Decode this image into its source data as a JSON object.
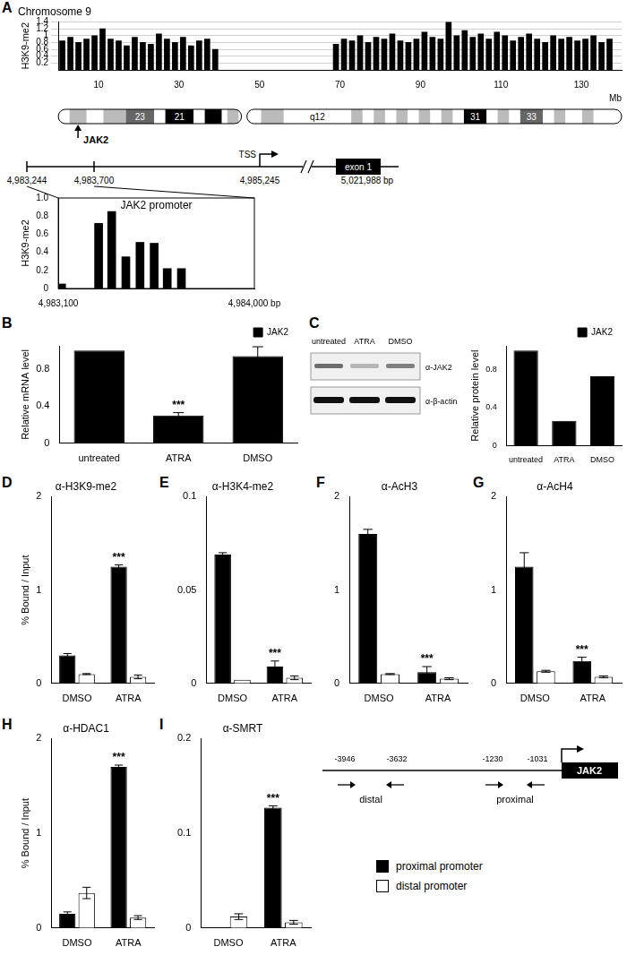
{
  "chart_data": [
    {
      "panel": "A",
      "type": "bar",
      "title": "Chromosome 9",
      "ylabel": "H3K9-me2",
      "xlabel": "Mb",
      "x": [
        1,
        3,
        5,
        7,
        9,
        11,
        13,
        15,
        17,
        19,
        21,
        23,
        25,
        27,
        29,
        31,
        33,
        35,
        37,
        39,
        69,
        71,
        73,
        75,
        77,
        79,
        81,
        83,
        85,
        87,
        89,
        91,
        93,
        95,
        97,
        99,
        101,
        103,
        105,
        107,
        109,
        111,
        113,
        115,
        117,
        119,
        121,
        123,
        125,
        127,
        129,
        131,
        133,
        135,
        137
      ],
      "values": [
        0.85,
        0.95,
        0.8,
        0.9,
        1.0,
        1.2,
        0.9,
        0.85,
        0.7,
        0.95,
        0.8,
        0.75,
        1.05,
        0.9,
        0.8,
        0.95,
        0.7,
        0.85,
        0.9,
        0.6,
        0.75,
        0.9,
        0.85,
        1.0,
        0.8,
        0.95,
        0.9,
        1.05,
        0.85,
        0.8,
        0.9,
        1.1,
        0.95,
        0.9,
        1.4,
        1.0,
        1.15,
        0.95,
        1.05,
        0.9,
        1.1,
        1.0,
        0.85,
        0.95,
        1.05,
        0.9,
        0.8,
        1.0,
        0.9,
        0.95,
        0.85,
        0.9,
        1.0,
        0.8,
        0.9
      ],
      "color": "#000000",
      "xlim": [
        0,
        140
      ],
      "xticks": [
        10,
        30,
        50,
        70,
        90,
        110,
        130
      ],
      "ylim": [
        0,
        1.4
      ],
      "yticks": [
        0.2,
        0.4,
        0.6,
        0.8,
        1,
        1.2,
        1.4
      ],
      "grid": true
    },
    {
      "type": "bar",
      "title": "JAK2 promoter",
      "ylabel": "H3K9-me2",
      "x": [
        4983115,
        4983285,
        4983345,
        4983410,
        4983475,
        4983540,
        4983600,
        4983665
      ],
      "values": [
        0.05,
        0.72,
        0.85,
        0.35,
        0.51,
        0.5,
        0.22,
        0.22
      ],
      "color": "#000000",
      "xlim": [
        4983100,
        4984000
      ],
      "xticks": [
        {
          "value": 4983100,
          "label": "4,983,100"
        },
        {
          "value": 4984000,
          "label": "4,984,000 bp"
        }
      ],
      "ylim": [
        0,
        1
      ],
      "yticks": [
        0,
        0.2,
        0.4,
        0.6,
        0.8,
        {
          "value": 1,
          "label": "1.0"
        }
      ]
    },
    {
      "panel": "B",
      "type": "bar",
      "ylabel": "Relative mRNA level",
      "categories": [
        "untreated",
        "ATRA",
        "DMSO"
      ],
      "series": [
        {
          "name": "JAK2",
          "color": "#000000",
          "values": [
            1,
            0.3,
            0.94
          ],
          "errors": [
            0,
            0.03,
            0.1
          ]
        }
      ],
      "ylim": [
        0,
        1.05
      ],
      "yticks": [
        0,
        0.4,
        0.8
      ],
      "legend": "upper right",
      "annotations": [
        {
          "text": "***",
          "category": "ATRA"
        }
      ]
    },
    {
      "panel": "C",
      "type": "bar",
      "ylabel": "Relative protein level",
      "categories": [
        "untreated",
        "ATRA",
        "DMSO"
      ],
      "series": [
        {
          "name": "JAK2",
          "color": "#000000",
          "values": [
            1,
            0.26,
            0.73
          ]
        }
      ],
      "ylim": [
        0,
        1.05
      ],
      "yticks": [
        0,
        0.4,
        0.8
      ],
      "legend": "upper right"
    },
    {
      "panel": "D",
      "type": "bar",
      "title": "α-H3K9-me2",
      "ylabel": "% Bound / Input",
      "categories": [
        "DMSO",
        "ATRA"
      ],
      "series": [
        {
          "color": "#000000",
          "values": [
            0.3,
            1.25
          ],
          "errors": [
            0.02,
            0.02
          ]
        },
        {
          "color": "#ffffff",
          "values": [
            0.1,
            0.07
          ],
          "errors": [
            0.005,
            0.02
          ]
        }
      ],
      "ylim": [
        0,
        2
      ],
      "yticks": [
        0,
        1,
        2
      ],
      "annotations": [
        {
          "text": "***",
          "category": "ATRA"
        }
      ]
    },
    {
      "panel": "E",
      "type": "bar",
      "title": "α-H3K4-me2",
      "categories": [
        "DMSO",
        "ATRA"
      ],
      "series": [
        {
          "color": "#000000",
          "values": [
            0.069,
            0.009
          ],
          "errors": [
            0.001,
            0.003
          ]
        },
        {
          "color": "#ffffff",
          "values": [
            0.002,
            0.003
          ],
          "errors": [
            0,
            0.001
          ]
        }
      ],
      "ylim": [
        0,
        0.1
      ],
      "yticks": [
        0,
        0.05,
        0.1
      ],
      "annotations": [
        {
          "text": "***",
          "category": "ATRA"
        }
      ]
    },
    {
      "panel": "F",
      "type": "bar",
      "title": "α-AcH3",
      "categories": [
        "DMSO",
        "ATRA"
      ],
      "series": [
        {
          "color": "#000000",
          "values": [
            1.6,
            0.12
          ],
          "errors": [
            0.05,
            0.06
          ]
        },
        {
          "color": "#ffffff",
          "values": [
            0.1,
            0.05
          ],
          "errors": [
            0.005,
            0.01
          ]
        }
      ],
      "ylim": [
        0,
        2
      ],
      "yticks": [
        0,
        1,
        2
      ],
      "annotations": [
        {
          "text": "***",
          "category": "ATRA"
        }
      ]
    },
    {
      "panel": "G",
      "type": "bar",
      "title": "α-AcH4",
      "categories": [
        "DMSO",
        "ATRA"
      ],
      "series": [
        {
          "color": "#000000",
          "values": [
            1.25,
            0.24
          ],
          "errors": [
            0.15,
            0.04
          ]
        },
        {
          "color": "#ffffff",
          "values": [
            0.13,
            0.07
          ],
          "errors": [
            0.01,
            0.01
          ]
        }
      ],
      "ylim": [
        0,
        2
      ],
      "yticks": [
        0,
        1,
        2
      ],
      "annotations": [
        {
          "text": "***",
          "category": "ATRA"
        }
      ]
    },
    {
      "panel": "H",
      "type": "bar",
      "title": "α-HDAC1",
      "ylabel": "% Bound / Input",
      "categories": [
        "DMSO",
        "ATRA"
      ],
      "series": [
        {
          "color": "#000000",
          "values": [
            0.15,
            1.7
          ],
          "errors": [
            0.02,
            0.02
          ]
        },
        {
          "color": "#ffffff",
          "values": [
            0.37,
            0.11
          ],
          "errors": [
            0.06,
            0.02
          ]
        }
      ],
      "ylim": [
        0,
        2
      ],
      "yticks": [
        0,
        1,
        2
      ],
      "annotations": [
        {
          "text": "***",
          "category": "ATRA"
        }
      ]
    },
    {
      "panel": "I",
      "type": "bar",
      "title": "α-SMRT",
      "categories": [
        "DMSO",
        "ATRA"
      ],
      "series": [
        {
          "name": "proximal promoter",
          "color": "#000000",
          "values": [
            0,
            0.127
          ],
          "errors": [
            0,
            0.002
          ]
        },
        {
          "name": "distal promoter",
          "color": "#ffffff",
          "values": [
            0.012,
            0.006
          ],
          "errors": [
            0.003,
            0.002
          ]
        }
      ],
      "ylim": [
        0,
        0.2
      ],
      "yticks": [
        0,
        0.1,
        0.2
      ],
      "legend": "lower right",
      "annotations": [
        {
          "text": "***",
          "category": "ATRA"
        }
      ]
    }
  ],
  "ideogram": {
    "band_labels": [
      "23",
      "21",
      "q12",
      "31",
      "33"
    ],
    "gene": "JAK2"
  },
  "gene_map": {
    "tss": "TSS",
    "exon": "exon 1",
    "coordinates": [
      "4,983,244",
      "4,983,700",
      "4,985,245",
      "5,021,988 bp"
    ]
  },
  "western_blot": {
    "lanes": [
      "untreated",
      "ATRA",
      "DMSO"
    ],
    "antibodies": [
      "α-JAK2",
      "α-β-actin"
    ]
  },
  "primer_map": {
    "gene": "JAK2",
    "primers": [
      {
        "name": "distal",
        "positions": [
          "-3946",
          "-3632"
        ]
      },
      {
        "name": "proximal",
        "positions": [
          "-1230",
          "-1031"
        ]
      }
    ]
  }
}
